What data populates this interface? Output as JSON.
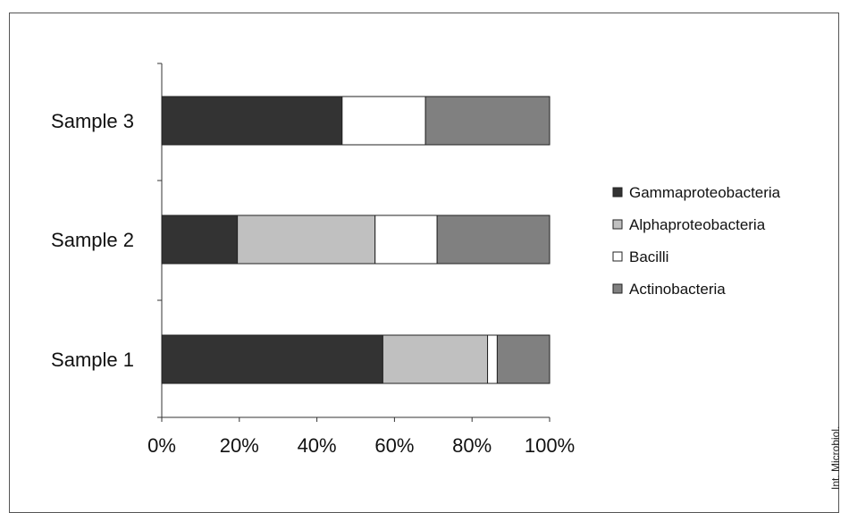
{
  "credit": "Int. Microbiol.",
  "chart_data": {
    "type": "bar",
    "orientation": "horizontal",
    "stacked": "percent",
    "title": "",
    "xlabel": "",
    "ylabel": "",
    "categories": [
      "Sample 1",
      "Sample 2",
      "Sample 3"
    ],
    "xlim": [
      0,
      100
    ],
    "x_ticks": [
      "0%",
      "20%",
      "40%",
      "60%",
      "80%",
      "100%"
    ],
    "grid": false,
    "legend_position": "right",
    "series": [
      {
        "name": "Gammaproteobacteria",
        "color": "#333333",
        "values": [
          57,
          19.5,
          46.5
        ]
      },
      {
        "name": "Alphaproteobacteria",
        "color": "#c0c0c0",
        "values": [
          27,
          35.5,
          0
        ]
      },
      {
        "name": "Bacilli",
        "color": "#ffffff",
        "values": [
          2.5,
          16,
          21.5
        ]
      },
      {
        "name": "Actinobacteria",
        "color": "#808080",
        "values": [
          13.5,
          29,
          32
        ]
      }
    ]
  }
}
